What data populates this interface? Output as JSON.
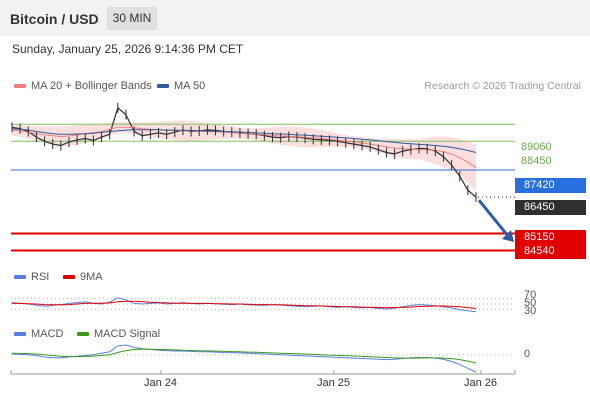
{
  "header": {
    "title": "Bitcoin / USD",
    "interval": "30 MIN"
  },
  "timestamp": "Sunday, January 25, 2026 9:14:36 PM CET",
  "copyright": "Research © 2026 Trading Central",
  "colors": {
    "bollinger": "#f08080",
    "ma50": "#2e5c9e",
    "support": "#e00000",
    "resistance_green": "#80c060",
    "current_price": "#2f2f2f",
    "blue_level": "#2a6fe0",
    "arrow": "#2f5aa8",
    "rsi": "#5a7ee0",
    "rsi_ma": "#e00000",
    "macd": "#5a7ee0",
    "macd_signal": "#3a9a1a"
  },
  "chart_data": [
    {
      "type": "line",
      "panel": "price",
      "legend": [
        {
          "name": "MA 20 + Bollinger Bands",
          "color": "#f08080"
        },
        {
          "name": "MA 50",
          "color": "#2e5c9e"
        }
      ],
      "y_range": [
        84200,
        90000
      ],
      "levels": [
        {
          "value": 89060,
          "label": "89060",
          "kind": "resistance"
        },
        {
          "value": 88450,
          "label": "88450",
          "kind": "resistance"
        },
        {
          "value": 87420,
          "label": "87420",
          "kind": "pivot"
        },
        {
          "value": 86450,
          "label": "86450",
          "kind": "last"
        },
        {
          "value": 85150,
          "label": "85150",
          "kind": "support"
        },
        {
          "value": 84540,
          "label": "84540",
          "kind": "support"
        }
      ],
      "x_ticks": [
        "Jan 24",
        "Jan 25",
        "Jan 26"
      ],
      "series": [
        {
          "name": "Price",
          "values": [
            88950,
            88900,
            88800,
            88600,
            88450,
            88350,
            88300,
            88420,
            88500,
            88550,
            88480,
            88600,
            88700,
            89650,
            89400,
            88800,
            88650,
            88700,
            88750,
            88700,
            88780,
            88850,
            88800,
            88820,
            88860,
            88840,
            88800,
            88780,
            88750,
            88720,
            88700,
            88650,
            88600,
            88580,
            88620,
            88600,
            88560,
            88520,
            88500,
            88480,
            88450,
            88400,
            88350,
            88300,
            88250,
            88150,
            88050,
            88000,
            88100,
            88150,
            88200,
            88180,
            88100,
            87900,
            87600,
            87200,
            86700,
            86450
          ]
        },
        {
          "name": "MA 20",
          "values": [
            88850,
            88820,
            88780,
            88720,
            88680,
            88650,
            88620,
            88640,
            88680,
            88720,
            88760,
            88800,
            88880,
            88950,
            88950,
            88930,
            88900,
            88880,
            88860,
            88850,
            88840,
            88830,
            88820,
            88810,
            88800,
            88790,
            88780,
            88760,
            88740,
            88720,
            88700,
            88680,
            88660,
            88640,
            88630,
            88610,
            88590,
            88570,
            88550,
            88520,
            88490,
            88460,
            88430,
            88390,
            88350,
            88300,
            88250,
            88200,
            88180,
            88170,
            88160,
            88150,
            88130,
            88080,
            87990,
            87870,
            87700,
            87500
          ]
        },
        {
          "name": "MA 50",
          "values": [
            88900,
            88880,
            88850,
            88800,
            88760,
            88720,
            88700,
            88700,
            88710,
            88720,
            88740,
            88770,
            88800,
            88830,
            88850,
            88860,
            88860,
            88860,
            88860,
            88850,
            88850,
            88840,
            88840,
            88830,
            88820,
            88810,
            88800,
            88790,
            88780,
            88770,
            88750,
            88740,
            88720,
            88710,
            88700,
            88680,
            88670,
            88650,
            88630,
            88610,
            88590,
            88570,
            88550,
            88520,
            88500,
            88470,
            88440,
            88410,
            88380,
            88360,
            88340,
            88320,
            88300,
            88270,
            88230,
            88180,
            88120,
            88050
          ]
        }
      ]
    },
    {
      "type": "line",
      "panel": "rsi",
      "legend": [
        {
          "name": "RSI",
          "color": "#5a7ee0"
        },
        {
          "name": "9MA",
          "color": "#e00000"
        }
      ],
      "y_range": [
        0,
        100
      ],
      "levels": [
        {
          "value": 70,
          "label": "70"
        },
        {
          "value": 50,
          "label": "50"
        },
        {
          "value": 30,
          "label": "30"
        }
      ],
      "series": [
        {
          "name": "RSI",
          "values": [
            55,
            52,
            50,
            46,
            42,
            45,
            48,
            52,
            55,
            58,
            52,
            50,
            56,
            72,
            65,
            52,
            50,
            52,
            54,
            50,
            52,
            55,
            52,
            50,
            53,
            51,
            49,
            48,
            50,
            47,
            46,
            45,
            48,
            46,
            44,
            42,
            40,
            42,
            44,
            40,
            38,
            40,
            38,
            36,
            38,
            34,
            32,
            35,
            40,
            45,
            48,
            46,
            44,
            40,
            36,
            30,
            26,
            22
          ]
        },
        {
          "name": "9MA",
          "values": [
            52,
            52,
            51,
            50,
            48,
            47,
            47,
            48,
            50,
            52,
            53,
            53,
            54,
            58,
            60,
            60,
            58,
            56,
            55,
            54,
            53,
            53,
            52,
            52,
            52,
            51,
            51,
            50,
            50,
            49,
            48,
            48,
            47,
            47,
            46,
            45,
            44,
            44,
            43,
            42,
            41,
            40,
            40,
            39,
            38,
            38,
            37,
            37,
            38,
            39,
            41,
            42,
            43,
            43,
            42,
            40,
            37,
            34
          ]
        }
      ]
    },
    {
      "type": "line",
      "panel": "macd",
      "legend": [
        {
          "name": "MACD",
          "color": "#5a7ee0"
        },
        {
          "name": "MACD Signal",
          "color": "#3a9a1a"
        }
      ],
      "levels": [
        {
          "value": 0,
          "label": "0"
        }
      ],
      "series": [
        {
          "name": "MACD",
          "values": [
            10,
            5,
            0,
            -10,
            -30,
            -40,
            -40,
            -30,
            -20,
            -10,
            0,
            20,
            40,
            120,
            130,
            100,
            80,
            70,
            60,
            55,
            50,
            50,
            45,
            40,
            40,
            35,
            30,
            28,
            25,
            20,
            15,
            10,
            5,
            0,
            -5,
            -10,
            -15,
            -20,
            -25,
            -30,
            -35,
            -40,
            -45,
            -50,
            -55,
            -60,
            -65,
            -60,
            -50,
            -40,
            -35,
            -38,
            -45,
            -60,
            -90,
            -130,
            -180,
            -230
          ]
        },
        {
          "name": "MACD Signal",
          "values": [
            20,
            18,
            15,
            10,
            0,
            -10,
            -20,
            -25,
            -25,
            -22,
            -18,
            -10,
            0,
            30,
            55,
            70,
            75,
            74,
            72,
            68,
            64,
            60,
            57,
            54,
            51,
            48,
            45,
            42,
            39,
            36,
            33,
            29,
            25,
            21,
            17,
            13,
            9,
            5,
            0,
            -4,
            -8,
            -12,
            -17,
            -22,
            -27,
            -32,
            -37,
            -42,
            -44,
            -44,
            -43,
            -42,
            -42,
            -45,
            -52,
            -65,
            -85,
            -110
          ]
        }
      ]
    }
  ]
}
